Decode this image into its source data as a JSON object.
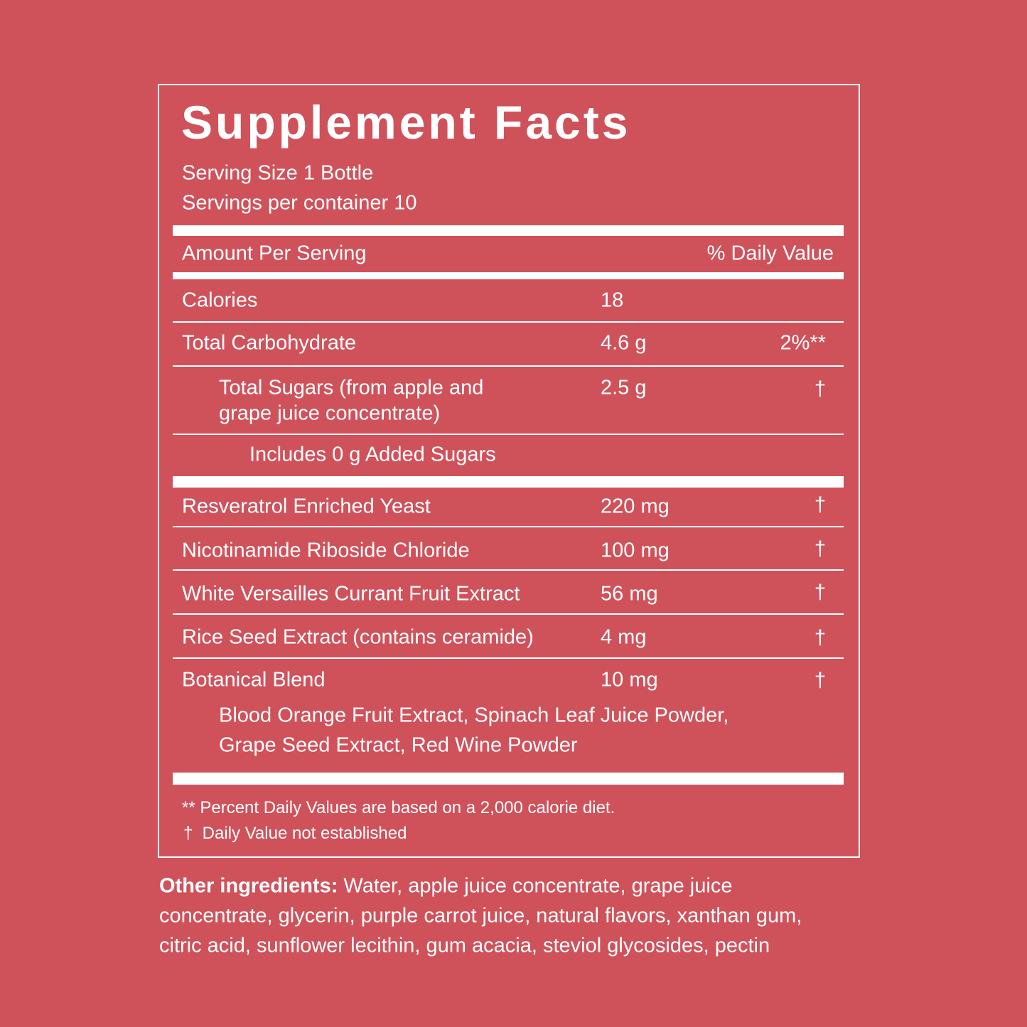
{
  "title": "Supplement Facts",
  "serving_size": "Serving Size 1 Bottle",
  "servings": "Servings per container 10",
  "header": {
    "amount": "Amount Per Serving",
    "daily_value": "% Daily Value"
  },
  "rows": [
    {
      "name": "Calories",
      "amount": "18"
    },
    {
      "name": "Total Carbohydrate",
      "amount": "4.6 g",
      "dv": "2%**"
    },
    {
      "name_lines": [
        "Total Sugars (from apple and",
        "grape juice concentrate)"
      ],
      "amount": "2.5 g",
      "dv": "†"
    },
    {
      "name": "Includes 0 g Added Sugars"
    },
    {
      "name": "Resveratrol Enriched Yeast",
      "amount": "220 mg",
      "dv": "†"
    },
    {
      "name": "Nicotinamide Riboside Chloride",
      "amount": "100 mg",
      "dv": "†"
    },
    {
      "name": "White Versailles Currant Fruit Extract",
      "amount": "56 mg",
      "dv": "†"
    },
    {
      "name": "Rice Seed Extract (contains ceramide)",
      "amount": "4 mg",
      "dv": "†"
    },
    {
      "name": "Botanical Blend",
      "amount": "10 mg",
      "dv": "†",
      "sub_lines": [
        "Blood Orange Fruit Extract, Spinach Leaf Juice Powder,",
        "Grape Seed Extract, Red Wine Powder"
      ]
    }
  ],
  "notes": [
    "** Percent Daily Values are based on a 2,000 calorie diet.",
    "†  Daily Value not established"
  ],
  "other_ingredients": {
    "label": "Other ingredients:",
    "lines": [
      "Water, apple juice concentrate, grape juice",
      "concentrate, glycerin, purple carrot juice, natural flavors, xanthan gum,",
      "citric acid, sunflower lecithin, gum acacia, steviol glycosides, pectin"
    ]
  }
}
